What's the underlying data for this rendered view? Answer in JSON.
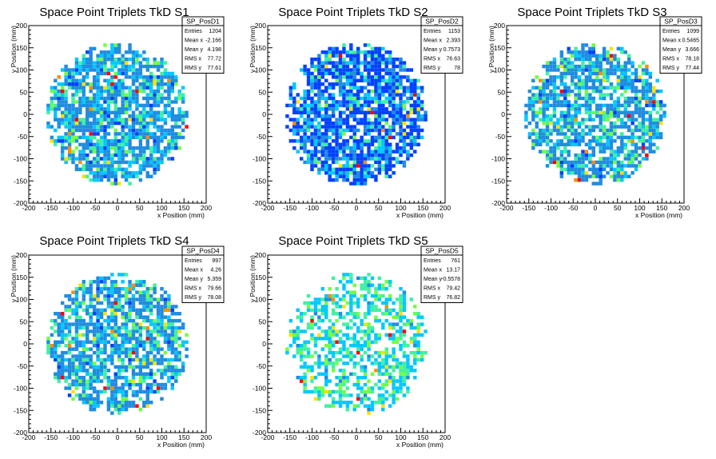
{
  "chart_data": [
    {
      "type": "heatmap",
      "title": "Space Point Triplets TkD S1",
      "xlabel": "x Position (mm)",
      "ylabel": "y Position (mm)",
      "xlim": [
        -200,
        200
      ],
      "ylim": [
        -200,
        200
      ],
      "xticks": [
        -200,
        -150,
        -100,
        -50,
        0,
        50,
        100,
        150,
        200
      ],
      "yticks": [
        -200,
        -150,
        -100,
        -50,
        0,
        50,
        100,
        150,
        200
      ],
      "stats": {
        "name": "SP_PosD1",
        "rows": [
          {
            "label": "Entries",
            "value": "1204"
          },
          {
            "label": "Mean x",
            "value": "-2.166"
          },
          {
            "label": "Mean y",
            "value": "4.198"
          },
          {
            "label": "RMS x",
            "value": "77.72"
          },
          {
            "label": "RMS y",
            "value": "77.61"
          }
        ]
      },
      "palette": [
        "#0040ff",
        "#1f8ce0",
        "#00c8ff",
        "#40f0a0",
        "#70ff40",
        "#ffe000",
        "#ff8c00",
        "#ff0000"
      ],
      "distribution": {
        "radius_mm": 160,
        "bin_mm": 8,
        "fill_fraction": 0.78,
        "color_weights": [
          0.06,
          0.52,
          0.2,
          0.14,
          0.05,
          0.015,
          0.01,
          0.005
        ]
      },
      "hotspots": [
        {
          "x": -124,
          "y": 52,
          "level": 7
        },
        {
          "x": 44,
          "y": 52,
          "level": 7
        },
        {
          "x": -60,
          "y": 60,
          "level": 6
        }
      ]
    },
    {
      "type": "heatmap",
      "title": "Space Point Triplets TkD S2",
      "xlabel": "x Position (mm)",
      "ylabel": "y Position (mm)",
      "xlim": [
        -200,
        200
      ],
      "ylim": [
        -200,
        200
      ],
      "xticks": [
        -200,
        -150,
        -100,
        -50,
        0,
        50,
        100,
        150,
        200
      ],
      "yticks": [
        -200,
        -150,
        -100,
        -50,
        0,
        50,
        100,
        150,
        200
      ],
      "stats": {
        "name": "SP_PosD2",
        "rows": [
          {
            "label": "Entries",
            "value": "1153"
          },
          {
            "label": "Mean x",
            "value": "2.393"
          },
          {
            "label": "Mean y",
            "value": "0.7573"
          },
          {
            "label": "RMS x",
            "value": "76.63"
          },
          {
            "label": "RMS y",
            "value": "78"
          }
        ]
      },
      "palette": [
        "#0040ff",
        "#1f8ce0",
        "#00c8ff",
        "#40f0a0",
        "#70ff40",
        "#ffe000",
        "#ff8c00",
        "#ff0000"
      ],
      "distribution": {
        "radius_mm": 160,
        "bin_mm": 8,
        "fill_fraction": 0.8,
        "color_weights": [
          0.55,
          0.2,
          0.14,
          0.07,
          0.02,
          0.01,
          0.005,
          0.005
        ]
      },
      "hotspots": [
        {
          "x": 20,
          "y": -108,
          "level": 6
        },
        {
          "x": -60,
          "y": 132,
          "level": 5
        },
        {
          "x": 108,
          "y": -20,
          "level": 5
        }
      ]
    },
    {
      "type": "heatmap",
      "title": "Space Point Triplets TkD S3",
      "xlabel": "x Position (mm)",
      "ylabel": "y Position (mm)",
      "xlim": [
        -200,
        200
      ],
      "ylim": [
        -200,
        200
      ],
      "xticks": [
        -200,
        -150,
        -100,
        -50,
        0,
        50,
        100,
        150,
        200
      ],
      "yticks": [
        -200,
        -150,
        -100,
        -50,
        0,
        50,
        100,
        150,
        200
      ],
      "stats": {
        "name": "SP_PosD3",
        "rows": [
          {
            "label": "Entries",
            "value": "1099"
          },
          {
            "label": "Mean x",
            "value": "0.5465"
          },
          {
            "label": "Mean y",
            "value": "3.666"
          },
          {
            "label": "RMS x",
            "value": "78.18"
          },
          {
            "label": "RMS y",
            "value": "77.44"
          }
        ]
      },
      "palette": [
        "#0040ff",
        "#1f8ce0",
        "#00c8ff",
        "#40f0a0",
        "#70ff40",
        "#ffe000",
        "#ff8c00",
        "#ff0000"
      ],
      "distribution": {
        "radius_mm": 160,
        "bin_mm": 8,
        "fill_fraction": 0.75,
        "color_weights": [
          0.03,
          0.55,
          0.18,
          0.15,
          0.06,
          0.015,
          0.01,
          0.005
        ]
      },
      "hotspots": [
        {
          "x": 76,
          "y": -4,
          "level": 7
        },
        {
          "x": -124,
          "y": 76,
          "level": 6
        },
        {
          "x": -20,
          "y": -84,
          "level": 6
        }
      ]
    },
    {
      "type": "heatmap",
      "title": "Space Point Triplets TkD S4",
      "xlabel": "x Position (mm)",
      "ylabel": "y Position (mm)",
      "xlim": [
        -200,
        200
      ],
      "ylim": [
        -200,
        200
      ],
      "xticks": [
        -200,
        -150,
        -100,
        -50,
        0,
        50,
        100,
        150,
        200
      ],
      "yticks": [
        -200,
        -150,
        -100,
        -50,
        0,
        50,
        100,
        150,
        200
      ],
      "stats": {
        "name": "SP_PosD4",
        "rows": [
          {
            "label": "Entries",
            "value": "997"
          },
          {
            "label": "Mean x",
            "value": "4.26"
          },
          {
            "label": "Mean y",
            "value": "5.359"
          },
          {
            "label": "RMS x",
            "value": "79.66"
          },
          {
            "label": "RMS y",
            "value": "78.08"
          }
        ]
      },
      "palette": [
        "#0040ff",
        "#1f8ce0",
        "#00c8ff",
        "#40f0a0",
        "#70ff40",
        "#ffe000",
        "#ff8c00",
        "#ff0000"
      ],
      "distribution": {
        "radius_mm": 160,
        "bin_mm": 8,
        "fill_fraction": 0.74,
        "color_weights": [
          0.02,
          0.6,
          0.16,
          0.14,
          0.05,
          0.015,
          0.01,
          0.005
        ]
      },
      "hotspots": [
        {
          "x": 68,
          "y": 12,
          "level": 7
        },
        {
          "x": -52,
          "y": 108,
          "level": 5
        },
        {
          "x": 108,
          "y": 44,
          "level": 5
        }
      ]
    },
    {
      "type": "heatmap",
      "title": "Space Point Triplets TkD S5",
      "xlabel": "x Position (mm)",
      "ylabel": "y Position (mm)",
      "xlim": [
        -200,
        200
      ],
      "ylim": [
        -200,
        200
      ],
      "xticks": [
        -200,
        -150,
        -100,
        -50,
        0,
        50,
        100,
        150,
        200
      ],
      "yticks": [
        -200,
        -150,
        -100,
        -50,
        0,
        50,
        100,
        150,
        200
      ],
      "stats": {
        "name": "SP_PosD5",
        "rows": [
          {
            "label": "Entries",
            "value": "761"
          },
          {
            "label": "Mean x",
            "value": "13.17"
          },
          {
            "label": "Mean y",
            "value": "-0.5578"
          },
          {
            "label": "RMS x",
            "value": "79.42"
          },
          {
            "label": "RMS y",
            "value": "76.82"
          }
        ]
      },
      "palette": [
        "#0040ff",
        "#1f8ce0",
        "#00c8ff",
        "#40f0a0",
        "#70ff40",
        "#ffe000",
        "#ff8c00",
        "#ff0000"
      ],
      "distribution": {
        "radius_mm": 160,
        "bin_mm": 8,
        "fill_fraction": 0.52,
        "color_weights": [
          0.0,
          0.05,
          0.5,
          0.28,
          0.13,
          0.03,
          0.005,
          0.005
        ]
      },
      "hotspots": [
        {
          "x": -100,
          "y": 52,
          "level": 7
        },
        {
          "x": -124,
          "y": -84,
          "level": 7
        },
        {
          "x": 0,
          "y": -20,
          "level": 7
        },
        {
          "x": 108,
          "y": 28,
          "level": 7
        },
        {
          "x": 4,
          "y": -124,
          "level": 7
        },
        {
          "x": 76,
          "y": 20,
          "level": 7
        }
      ]
    }
  ]
}
